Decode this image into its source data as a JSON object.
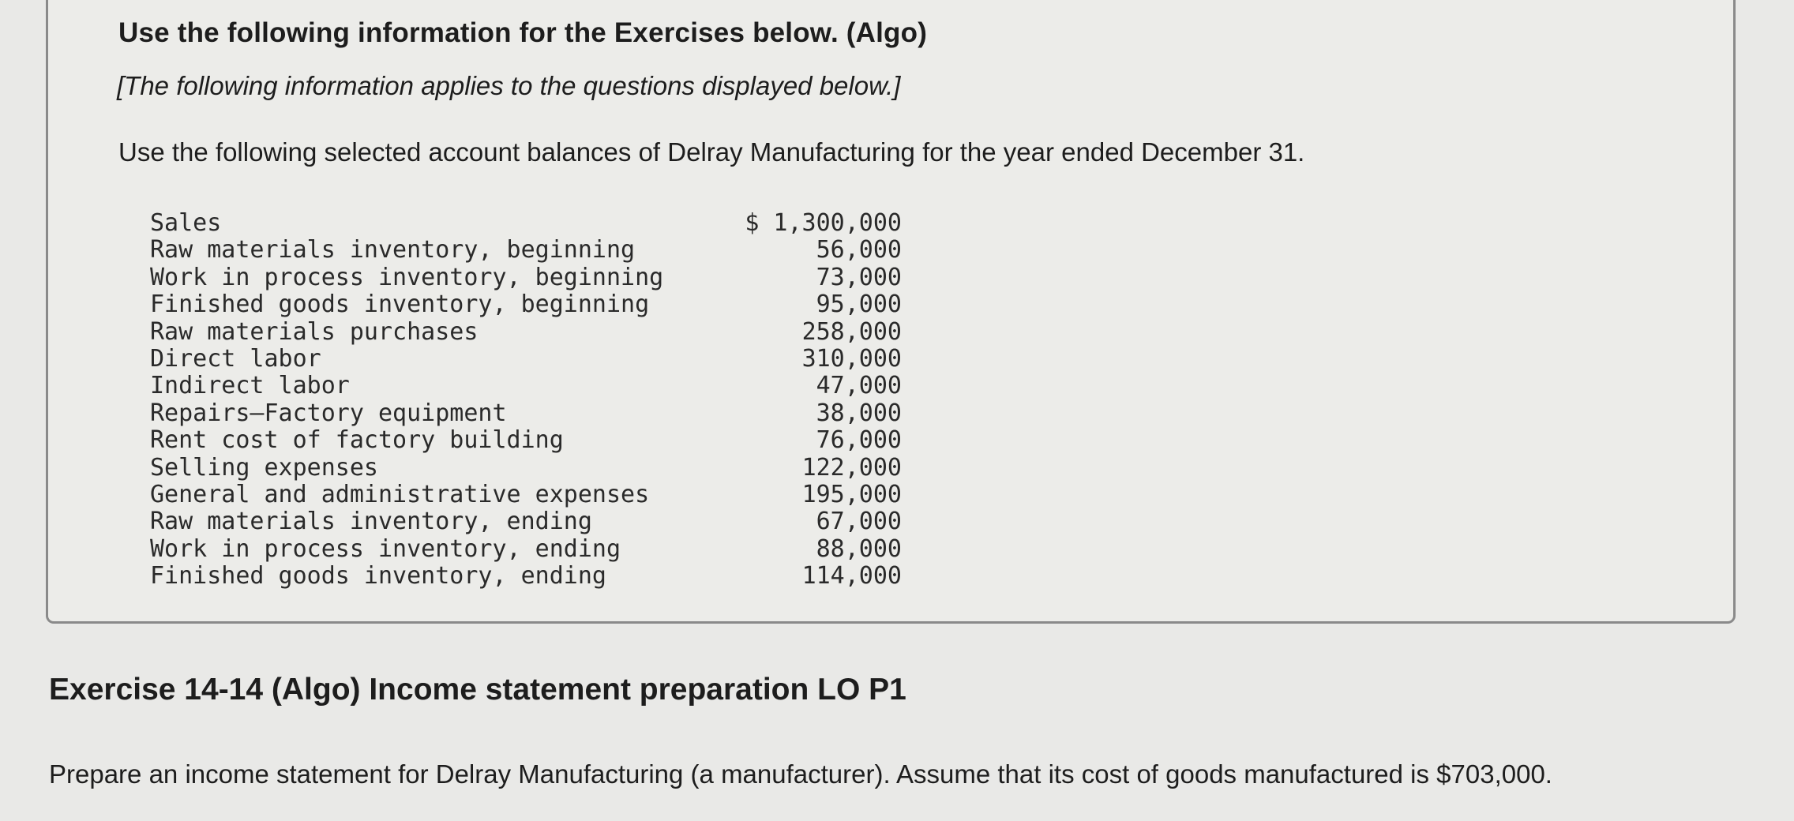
{
  "header": {
    "title": "Use the following information for the Exercises below. (Algo)",
    "subtitle": "[The following information applies to the questions displayed below.]",
    "intro": "Use the following selected account balances of Delray Manufacturing for the year ended December 31."
  },
  "balances": [
    {
      "label": "Sales",
      "amount": "$ 1,300,000"
    },
    {
      "label": "Raw materials inventory, beginning",
      "amount": "56,000"
    },
    {
      "label": "Work in process inventory, beginning",
      "amount": "73,000"
    },
    {
      "label": "Finished goods inventory, beginning",
      "amount": "95,000"
    },
    {
      "label": "Raw materials purchases",
      "amount": "258,000"
    },
    {
      "label": "Direct labor",
      "amount": "310,000"
    },
    {
      "label": "Indirect labor",
      "amount": "47,000"
    },
    {
      "label": "Repairs—Factory equipment",
      "amount": "38,000"
    },
    {
      "label": "Rent cost of factory building",
      "amount": "76,000"
    },
    {
      "label": "Selling expenses",
      "amount": "122,000"
    },
    {
      "label": "General and administrative expenses",
      "amount": "195,000"
    },
    {
      "label": "Raw materials inventory, ending",
      "amount": "67,000"
    },
    {
      "label": "Work in process inventory, ending",
      "amount": "88,000"
    },
    {
      "label": "Finished goods inventory, ending",
      "amount": "114,000"
    }
  ],
  "exercise": {
    "title": "Exercise 14-14 (Algo) Income statement preparation LO P1",
    "prompt": "Prepare an income statement for Delray Manufacturing (a manufacturer). Assume that its cost of goods manufactured is $703,000."
  }
}
